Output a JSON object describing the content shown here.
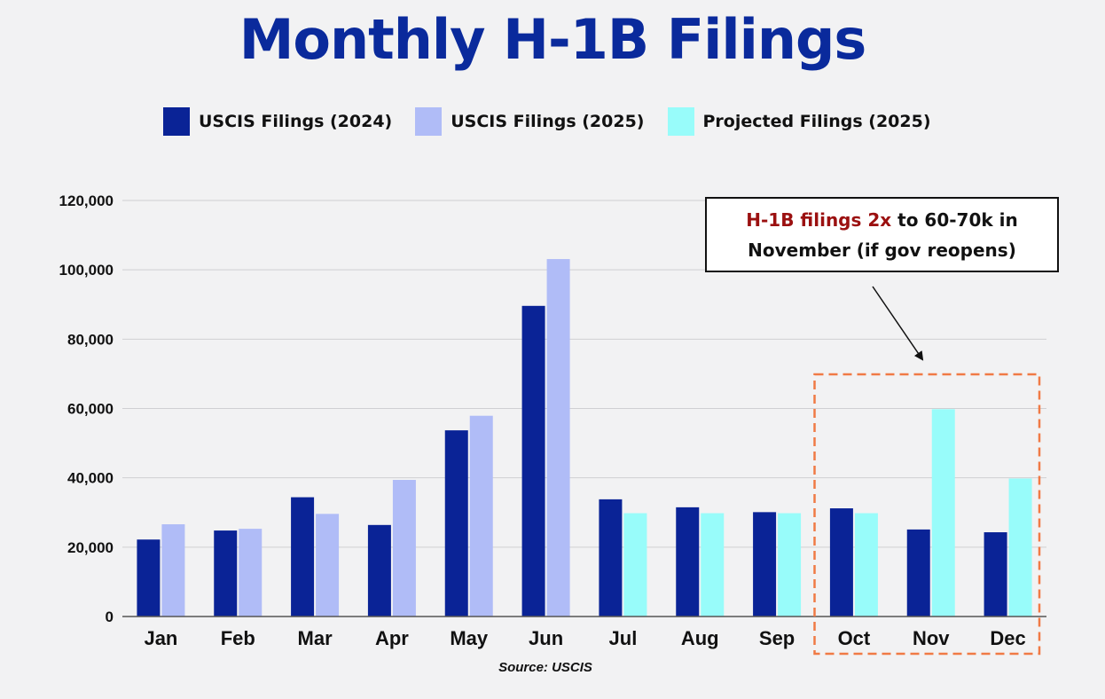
{
  "chart_data": {
    "type": "bar",
    "title": "Monthly H-1B Filings",
    "categories": [
      "Jan",
      "Feb",
      "Mar",
      "Apr",
      "May",
      "Jun",
      "Jul",
      "Aug",
      "Sep",
      "Oct",
      "Nov",
      "Dec"
    ],
    "series": [
      {
        "name": "USCIS Filings (2024)",
        "color": "#0a2396",
        "values": [
          22200,
          24800,
          34400,
          26400,
          53700,
          89600,
          33800,
          31500,
          30100,
          31200,
          25100,
          24300
        ]
      },
      {
        "name": "USCIS Filings (2025)",
        "color": "#b0bcf7",
        "values": [
          26600,
          25300,
          29600,
          39400,
          57900,
          103100,
          null,
          null,
          null,
          null,
          null,
          null
        ]
      },
      {
        "name": "Projected Filings (2025)",
        "color": "#98fcfa",
        "values": [
          null,
          null,
          null,
          null,
          null,
          null,
          29800,
          29800,
          29800,
          29800,
          59800,
          39800
        ]
      }
    ],
    "ylim": [
      0,
      120000
    ],
    "yticks": [
      "0",
      "20,000",
      "40,000",
      "60,000",
      "80,000",
      "100,000",
      "120,000"
    ],
    "xlabel": "",
    "ylabel": "",
    "grid": true,
    "legend_position": "top",
    "annotation": {
      "text_highlight": "H-1B filings 2x",
      "text_rest_line1": " to 60-70k in",
      "text_line2": "November (if gov reopens)",
      "highlight_color": "#9b1010",
      "box_categories": [
        "Oct",
        "Nov",
        "Dec"
      ],
      "box_color": "#f07a45"
    },
    "source": "Source: USCIS"
  }
}
